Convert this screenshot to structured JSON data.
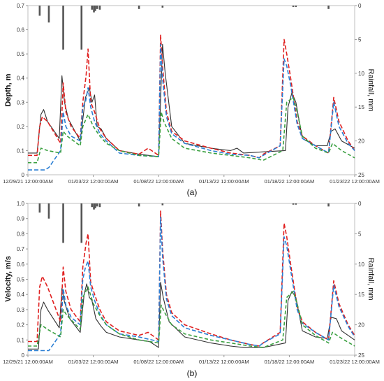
{
  "chart_data": [
    {
      "type": "line",
      "panel_label": "(a)",
      "ylabel": "Depth, m",
      "y2label": "Rainfall, mm",
      "ylim": [
        0,
        0.7
      ],
      "yticks": [
        "0",
        "0.1",
        "0.2",
        "0.3",
        "0.4",
        "0.5",
        "0.6",
        "0.7"
      ],
      "y2lim": [
        0,
        25
      ],
      "y2ticks": [
        "0",
        "5",
        "10",
        "15",
        "20",
        "25"
      ],
      "xlim": [
        0,
        25
      ],
      "xticks": [
        "12/29/21 12:00:00AM",
        "01/03/22 12:00:00AM",
        "01/08/22 12:00:00AM",
        "01/13/22 12:00:00AM",
        "01/18/22 12:00:00AM",
        "01/23/22 12:00:00AM"
      ],
      "xtick_positions": [
        0,
        5,
        10,
        15,
        20,
        25
      ],
      "rain": [
        {
          "x": 0.9,
          "y": 1.5
        },
        {
          "x": 1.6,
          "y": 2.5
        },
        {
          "x": 2.7,
          "y": 6.5
        },
        {
          "x": 4.1,
          "y": 6.5
        },
        {
          "x": 4.9,
          "y": 0.6
        },
        {
          "x": 5.05,
          "y": 1.0
        },
        {
          "x": 5.15,
          "y": 0.8
        },
        {
          "x": 5.3,
          "y": 0.5
        },
        {
          "x": 5.5,
          "y": 0.6
        },
        {
          "x": 8.5,
          "y": 0.5
        },
        {
          "x": 10.3,
          "y": 0.3
        },
        {
          "x": 20.3,
          "y": 0.2
        },
        {
          "x": 20.5,
          "y": 0.2
        },
        {
          "x": 23.0,
          "y": 0.5
        }
      ],
      "series": [
        {
          "color": "#303030",
          "dash": "",
          "x": [
            0,
            0.7,
            1.0,
            1.2,
            1.5,
            2.4,
            2.6,
            2.8,
            3.1,
            4.0,
            4.4,
            4.7,
            4.9,
            5.1,
            5.3,
            5.6,
            6.0,
            7,
            8.5,
            10,
            10.3,
            10.5,
            11,
            12,
            14,
            15.5,
            16,
            16.5,
            18,
            19.7,
            19.9,
            20.2,
            20.5,
            21,
            22,
            22.9,
            23.2,
            23.5,
            24,
            25
          ],
          "y": [
            0.09,
            0.09,
            0.25,
            0.27,
            0.22,
            0.15,
            0.41,
            0.3,
            0.23,
            0.14,
            0.32,
            0.36,
            0.3,
            0.33,
            0.2,
            0.19,
            0.15,
            0.1,
            0.085,
            0.075,
            0.54,
            0.42,
            0.2,
            0.13,
            0.11,
            0.1,
            0.11,
            0.09,
            0.095,
            0.1,
            0.28,
            0.34,
            0.3,
            0.15,
            0.12,
            0.12,
            0.18,
            0.19,
            0.14,
            0.11
          ]
        },
        {
          "color": "#e02020",
          "dash": "6,3",
          "x": [
            0,
            0.7,
            0.9,
            1.1,
            1.5,
            2.5,
            2.7,
            2.9,
            3.3,
            4.0,
            4.2,
            4.45,
            4.6,
            4.8,
            5.1,
            5.5,
            6.0,
            7,
            8.5,
            9.2,
            10,
            10.15,
            10.3,
            10.6,
            11,
            12,
            14,
            15.5,
            17,
            17.7,
            18,
            19.3,
            19.6,
            19.8,
            20.1,
            20.6,
            21,
            22,
            23,
            23.4,
            23.8,
            24.5,
            25
          ],
          "y": [
            0.08,
            0.08,
            0.2,
            0.24,
            0.22,
            0.13,
            0.38,
            0.26,
            0.2,
            0.15,
            0.3,
            0.41,
            0.52,
            0.3,
            0.26,
            0.19,
            0.15,
            0.1,
            0.085,
            0.11,
            0.08,
            0.58,
            0.45,
            0.26,
            0.18,
            0.14,
            0.11,
            0.09,
            0.08,
            0.07,
            0.085,
            0.12,
            0.56,
            0.5,
            0.4,
            0.22,
            0.16,
            0.12,
            0.09,
            0.32,
            0.22,
            0.14,
            0.1
          ]
        },
        {
          "color": "#2b7fd4",
          "dash": "6,3",
          "x": [
            0,
            1.3,
            1.6,
            2.5,
            2.7,
            2.9,
            3.3,
            4.0,
            4.2,
            4.4,
            4.6,
            4.8,
            5.1,
            5.5,
            6.0,
            7,
            8.5,
            10,
            10.15,
            10.3,
            10.6,
            11,
            12,
            14,
            15.5,
            17,
            17.7,
            18,
            19.3,
            19.6,
            19.8,
            20.1,
            20.6,
            21,
            22,
            23,
            23.4,
            23.8,
            24.5,
            25
          ],
          "y": [
            0.02,
            0.02,
            0.03,
            0.1,
            0.26,
            0.2,
            0.16,
            0.14,
            0.28,
            0.3,
            0.36,
            0.28,
            0.22,
            0.17,
            0.14,
            0.09,
            0.08,
            0.075,
            0.54,
            0.4,
            0.24,
            0.17,
            0.13,
            0.1,
            0.085,
            0.08,
            0.07,
            0.08,
            0.12,
            0.48,
            0.45,
            0.37,
            0.21,
            0.15,
            0.12,
            0.09,
            0.3,
            0.2,
            0.13,
            0.1
          ]
        },
        {
          "color": "#3aa040",
          "dash": "5,3",
          "x": [
            0,
            0.7,
            1.0,
            1.5,
            2.5,
            2.7,
            3.0,
            4.0,
            4.2,
            4.6,
            5.0,
            5.5,
            6.0,
            7,
            8.5,
            10,
            10.2,
            10.4,
            11,
            12,
            14,
            15.5,
            17,
            18,
            19.5,
            19.8,
            20.3,
            20.6,
            21,
            22,
            23,
            23.3,
            24,
            25
          ],
          "y": [
            0.05,
            0.05,
            0.11,
            0.1,
            0.09,
            0.18,
            0.16,
            0.12,
            0.2,
            0.25,
            0.2,
            0.16,
            0.13,
            0.1,
            0.08,
            0.075,
            0.26,
            0.22,
            0.15,
            0.11,
            0.09,
            0.08,
            0.07,
            0.06,
            0.1,
            0.3,
            0.32,
            0.26,
            0.16,
            0.11,
            0.09,
            0.13,
            0.1,
            0.07
          ]
        }
      ]
    },
    {
      "type": "line",
      "panel_label": "(b)",
      "ylabel": "Velocity, m/s",
      "y2label": "Rainfall, mm",
      "ylim": [
        0,
        1.0
      ],
      "yticks": [
        "0",
        "0.1",
        "0.2",
        "0.3",
        "0.4",
        "0.5",
        "0.6",
        "0.7",
        "0.8",
        "0.9",
        "1.0"
      ],
      "y2lim": [
        0,
        25
      ],
      "y2ticks": [
        "0",
        "5",
        "10",
        "15",
        "20",
        "25"
      ],
      "xlim": [
        0,
        25
      ],
      "xticks": [
        "12/29/21 12:00:00AM",
        "01/03/22 12:00:00AM",
        "01/08/22 12:00:00AM",
        "01/13/22 12:00:00AM",
        "01/18/22 12:00:00AM",
        "01/23/22 12:00:00AM"
      ],
      "xtick_positions": [
        0,
        5,
        10,
        15,
        20,
        25
      ],
      "rain": [
        {
          "x": 0.9,
          "y": 1.5
        },
        {
          "x": 1.6,
          "y": 2.5
        },
        {
          "x": 2.7,
          "y": 6.5
        },
        {
          "x": 4.1,
          "y": 6.5
        },
        {
          "x": 4.9,
          "y": 0.6
        },
        {
          "x": 5.05,
          "y": 1.0
        },
        {
          "x": 5.15,
          "y": 0.8
        },
        {
          "x": 5.3,
          "y": 0.5
        },
        {
          "x": 5.5,
          "y": 0.6
        },
        {
          "x": 8.5,
          "y": 0.5
        },
        {
          "x": 10.3,
          "y": 0.3
        },
        {
          "x": 20.3,
          "y": 0.2
        },
        {
          "x": 20.5,
          "y": 0.2
        },
        {
          "x": 23.0,
          "y": 0.5
        }
      ],
      "series": [
        {
          "color": "#303030",
          "dash": "",
          "x": [
            0,
            0.8,
            1.0,
            1.2,
            1.5,
            2.4,
            2.6,
            2.8,
            3.2,
            4.0,
            4.3,
            4.5,
            4.7,
            4.9,
            5.2,
            5.6,
            6.0,
            7,
            8.5,
            9.3,
            10.0,
            10.15,
            10.35,
            10.8,
            12,
            14,
            15.5,
            16.5,
            18,
            19.7,
            19.9,
            20.2,
            20.5,
            21,
            22,
            22.9,
            23.2,
            23.6,
            24,
            25
          ],
          "y": [
            0.04,
            0.04,
            0.3,
            0.35,
            0.3,
            0.18,
            0.44,
            0.35,
            0.24,
            0.15,
            0.4,
            0.47,
            0.38,
            0.36,
            0.24,
            0.19,
            0.15,
            0.12,
            0.1,
            0.09,
            0.05,
            0.48,
            0.38,
            0.22,
            0.12,
            0.08,
            0.06,
            0.05,
            0.05,
            0.08,
            0.36,
            0.42,
            0.38,
            0.16,
            0.12,
            0.11,
            0.25,
            0.24,
            0.16,
            0.1
          ]
        },
        {
          "color": "#e02020",
          "dash": "6,3",
          "x": [
            0,
            0.7,
            0.9,
            1.1,
            1.5,
            2.5,
            2.7,
            2.9,
            3.3,
            4.0,
            4.2,
            4.45,
            4.6,
            4.8,
            5.1,
            5.5,
            6.0,
            7,
            8.5,
            9.2,
            10,
            10.15,
            10.3,
            10.6,
            11,
            12,
            14,
            15.5,
            17,
            17.7,
            18,
            19.3,
            19.6,
            19.8,
            20.1,
            20.6,
            21,
            22,
            23,
            23.4,
            23.8,
            24.5,
            25
          ],
          "y": [
            0.09,
            0.09,
            0.45,
            0.52,
            0.45,
            0.22,
            0.58,
            0.42,
            0.3,
            0.22,
            0.58,
            0.74,
            0.8,
            0.48,
            0.4,
            0.3,
            0.22,
            0.16,
            0.13,
            0.15,
            0.1,
            0.95,
            0.7,
            0.4,
            0.28,
            0.2,
            0.14,
            0.1,
            0.07,
            0.06,
            0.08,
            0.15,
            0.87,
            0.78,
            0.6,
            0.32,
            0.22,
            0.15,
            0.1,
            0.49,
            0.34,
            0.2,
            0.13
          ]
        },
        {
          "color": "#2b7fd4",
          "dash": "6,3",
          "x": [
            0,
            1.3,
            1.6,
            2.5,
            2.7,
            2.9,
            3.3,
            4.0,
            4.2,
            4.4,
            4.6,
            4.8,
            5.1,
            5.5,
            6.0,
            7,
            8.5,
            10,
            10.15,
            10.3,
            10.6,
            11,
            12,
            14,
            15.5,
            17,
            17.7,
            18,
            19.3,
            19.6,
            19.8,
            20.1,
            20.6,
            21,
            22,
            23,
            23.4,
            23.8,
            24.5,
            25
          ],
          "y": [
            0.03,
            0.03,
            0.03,
            0.14,
            0.44,
            0.33,
            0.25,
            0.2,
            0.5,
            0.58,
            0.62,
            0.45,
            0.36,
            0.27,
            0.2,
            0.14,
            0.12,
            0.09,
            0.91,
            0.65,
            0.37,
            0.26,
            0.18,
            0.13,
            0.1,
            0.07,
            0.06,
            0.08,
            0.14,
            0.78,
            0.72,
            0.56,
            0.3,
            0.21,
            0.15,
            0.1,
            0.46,
            0.32,
            0.19,
            0.12
          ]
        },
        {
          "color": "#3aa040",
          "dash": "5,3",
          "x": [
            0,
            0.7,
            1.0,
            1.5,
            2.5,
            2.7,
            3.0,
            4.0,
            4.2,
            4.6,
            5.0,
            5.5,
            6.0,
            7,
            8.5,
            10,
            10.2,
            10.4,
            11,
            12,
            14,
            15.5,
            17,
            18,
            19.5,
            19.8,
            20.3,
            20.6,
            21,
            22,
            23,
            23.3,
            24,
            25
          ],
          "y": [
            0.06,
            0.06,
            0.2,
            0.17,
            0.12,
            0.3,
            0.26,
            0.17,
            0.38,
            0.45,
            0.34,
            0.26,
            0.2,
            0.14,
            0.1,
            0.08,
            0.33,
            0.29,
            0.2,
            0.14,
            0.1,
            0.08,
            0.06,
            0.05,
            0.1,
            0.38,
            0.42,
            0.34,
            0.2,
            0.13,
            0.08,
            0.15,
            0.11,
            0.06
          ]
        }
      ]
    }
  ]
}
